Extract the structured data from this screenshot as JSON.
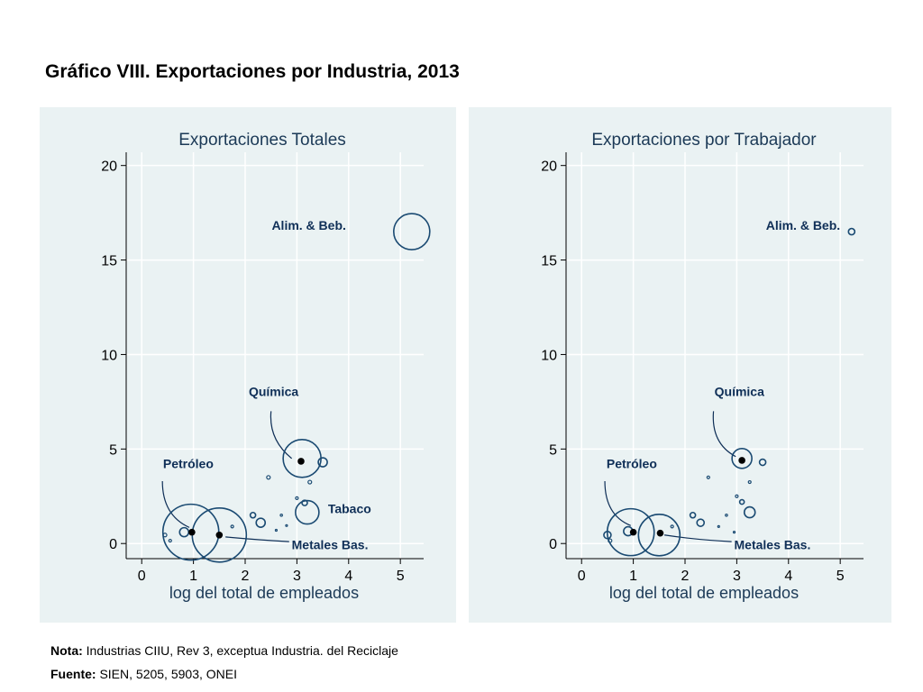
{
  "title": "Gráfico VIII. Exportaciones por Industria, 2013",
  "footer": {
    "note_label": "Nota:",
    "note_text": "Industrias CIIU, Rev 3, exceptua Industria. del Reciclaje",
    "source_label": "Fuente:",
    "source_text": "SIEN, 5205, 5903, ONEI"
  },
  "colors": {
    "panel_bg": "#eaf2f3",
    "marker": "#1a4a72",
    "label": "#0f2f57",
    "highlight": "#000000",
    "grid": "#ffffff"
  },
  "chart_data": [
    {
      "type": "scatter",
      "title": "Exportaciones Totales",
      "xlabel": "log del total de empleados",
      "ylabel": "",
      "xlim": [
        -0.3,
        5.45
      ],
      "ylim": [
        -0.8,
        20.7
      ],
      "xticks": [
        0,
        1,
        2,
        3,
        4,
        5
      ],
      "yticks": [
        0,
        5,
        10,
        15,
        20
      ],
      "grid": true,
      "marker_note": "circle area proportional to exports",
      "points": [
        {
          "x": 5.22,
          "y": 16.5,
          "r": 20
        },
        {
          "x": 3.1,
          "y": 4.5,
          "r": 21
        },
        {
          "x": 3.5,
          "y": 4.3,
          "r": 5
        },
        {
          "x": 3.25,
          "y": 3.25,
          "r": 2
        },
        {
          "x": 2.45,
          "y": 3.5,
          "r": 2
        },
        {
          "x": 3.0,
          "y": 2.4,
          "r": 1.5
        },
        {
          "x": 3.15,
          "y": 2.15,
          "r": 3
        },
        {
          "x": 3.2,
          "y": 1.65,
          "r": 13
        },
        {
          "x": 2.7,
          "y": 1.5,
          "r": 1.2
        },
        {
          "x": 2.15,
          "y": 1.5,
          "r": 3
        },
        {
          "x": 2.3,
          "y": 1.1,
          "r": 5
        },
        {
          "x": 1.75,
          "y": 0.9,
          "r": 1.5
        },
        {
          "x": 2.8,
          "y": 0.95,
          "r": 1
        },
        {
          "x": 0.95,
          "y": 0.6,
          "r": 31
        },
        {
          "x": 1.5,
          "y": 0.45,
          "r": 30
        },
        {
          "x": 0.82,
          "y": 0.6,
          "r": 5
        },
        {
          "x": 0.45,
          "y": 0.45,
          "r": 2
        },
        {
          "x": 0.55,
          "y": 0.15,
          "r": 1.5
        },
        {
          "x": 2.6,
          "y": 0.7,
          "r": 1
        }
      ],
      "highlights": [
        {
          "x": 3.08,
          "y": 4.35
        },
        {
          "x": 0.97,
          "y": 0.6
        },
        {
          "x": 1.5,
          "y": 0.45
        }
      ],
      "labels": [
        {
          "text": "Alim. & Beb.",
          "x": 3.95,
          "y": 16.6,
          "anchor": "end"
        },
        {
          "text": "Química",
          "x": 2.55,
          "y": 7.8,
          "anchor": "middle",
          "leader": [
            [
              2.5,
              7.0
            ],
            [
              2.45,
              5.5
            ],
            [
              2.9,
              4.5
            ]
          ]
        },
        {
          "text": "Petróleo",
          "x": 0.9,
          "y": 4.0,
          "anchor": "middle",
          "leader": [
            [
              0.4,
              3.3
            ],
            [
              0.4,
              1.5
            ],
            [
              0.92,
              0.85
            ]
          ]
        },
        {
          "text": "Tabaco",
          "x": 3.6,
          "y": 1.6,
          "anchor": "start"
        },
        {
          "text": "Metales Bas.",
          "x": 2.9,
          "y": -0.3,
          "anchor": "start",
          "leader": [
            [
              1.62,
              0.35
            ],
            [
              2.2,
              0.2
            ],
            [
              2.85,
              0.1
            ]
          ]
        }
      ]
    },
    {
      "type": "scatter",
      "title": "Exportaciones por Trabajador",
      "xlabel": "log del total de empleados",
      "ylabel": "",
      "xlim": [
        -0.3,
        5.45
      ],
      "ylim": [
        -0.8,
        20.7
      ],
      "xticks": [
        0,
        1,
        2,
        3,
        4,
        5
      ],
      "yticks": [
        0,
        5,
        10,
        15,
        20
      ],
      "grid": true,
      "marker_note": "circle area proportional to exports per worker",
      "points": [
        {
          "x": 5.22,
          "y": 16.5,
          "r": 3.5
        },
        {
          "x": 3.1,
          "y": 4.5,
          "r": 11
        },
        {
          "x": 3.5,
          "y": 4.3,
          "r": 3.5
        },
        {
          "x": 3.25,
          "y": 3.25,
          "r": 1.5
        },
        {
          "x": 2.45,
          "y": 3.5,
          "r": 1.5
        },
        {
          "x": 3.0,
          "y": 2.5,
          "r": 1.5
        },
        {
          "x": 3.1,
          "y": 2.2,
          "r": 2.5
        },
        {
          "x": 3.25,
          "y": 1.65,
          "r": 6
        },
        {
          "x": 2.8,
          "y": 1.5,
          "r": 1.2
        },
        {
          "x": 2.15,
          "y": 1.5,
          "r": 3
        },
        {
          "x": 2.3,
          "y": 1.1,
          "r": 4
        },
        {
          "x": 1.75,
          "y": 0.9,
          "r": 1.5
        },
        {
          "x": 2.65,
          "y": 0.9,
          "r": 1
        },
        {
          "x": 0.95,
          "y": 0.6,
          "r": 26
        },
        {
          "x": 1.5,
          "y": 0.45,
          "r": 23
        },
        {
          "x": 0.9,
          "y": 0.65,
          "r": 5
        },
        {
          "x": 0.5,
          "y": 0.45,
          "r": 4
        },
        {
          "x": 0.55,
          "y": 0.15,
          "r": 2
        },
        {
          "x": 2.95,
          "y": 0.6,
          "r": 1
        }
      ],
      "highlights": [
        {
          "x": 3.1,
          "y": 4.4
        },
        {
          "x": 1.0,
          "y": 0.6
        },
        {
          "x": 1.52,
          "y": 0.55
        }
      ],
      "labels": [
        {
          "text": "Alim. & Beb.",
          "x": 5.0,
          "y": 16.6,
          "anchor": "end"
        },
        {
          "text": "Química",
          "x": 3.05,
          "y": 7.8,
          "anchor": "middle",
          "leader": [
            [
              2.55,
              7.0
            ],
            [
              2.5,
              5.3
            ],
            [
              2.98,
              4.6
            ]
          ]
        },
        {
          "text": "Petróleo",
          "x": 0.97,
          "y": 4.0,
          "anchor": "middle",
          "leader": [
            [
              0.45,
              3.3
            ],
            [
              0.45,
              1.5
            ],
            [
              0.95,
              0.95
            ]
          ]
        },
        {
          "text": "Metales Bas.",
          "x": 2.95,
          "y": -0.3,
          "anchor": "start",
          "leader": [
            [
              1.6,
              0.45
            ],
            [
              2.2,
              0.2
            ],
            [
              2.9,
              0.1
            ]
          ]
        }
      ]
    }
  ]
}
